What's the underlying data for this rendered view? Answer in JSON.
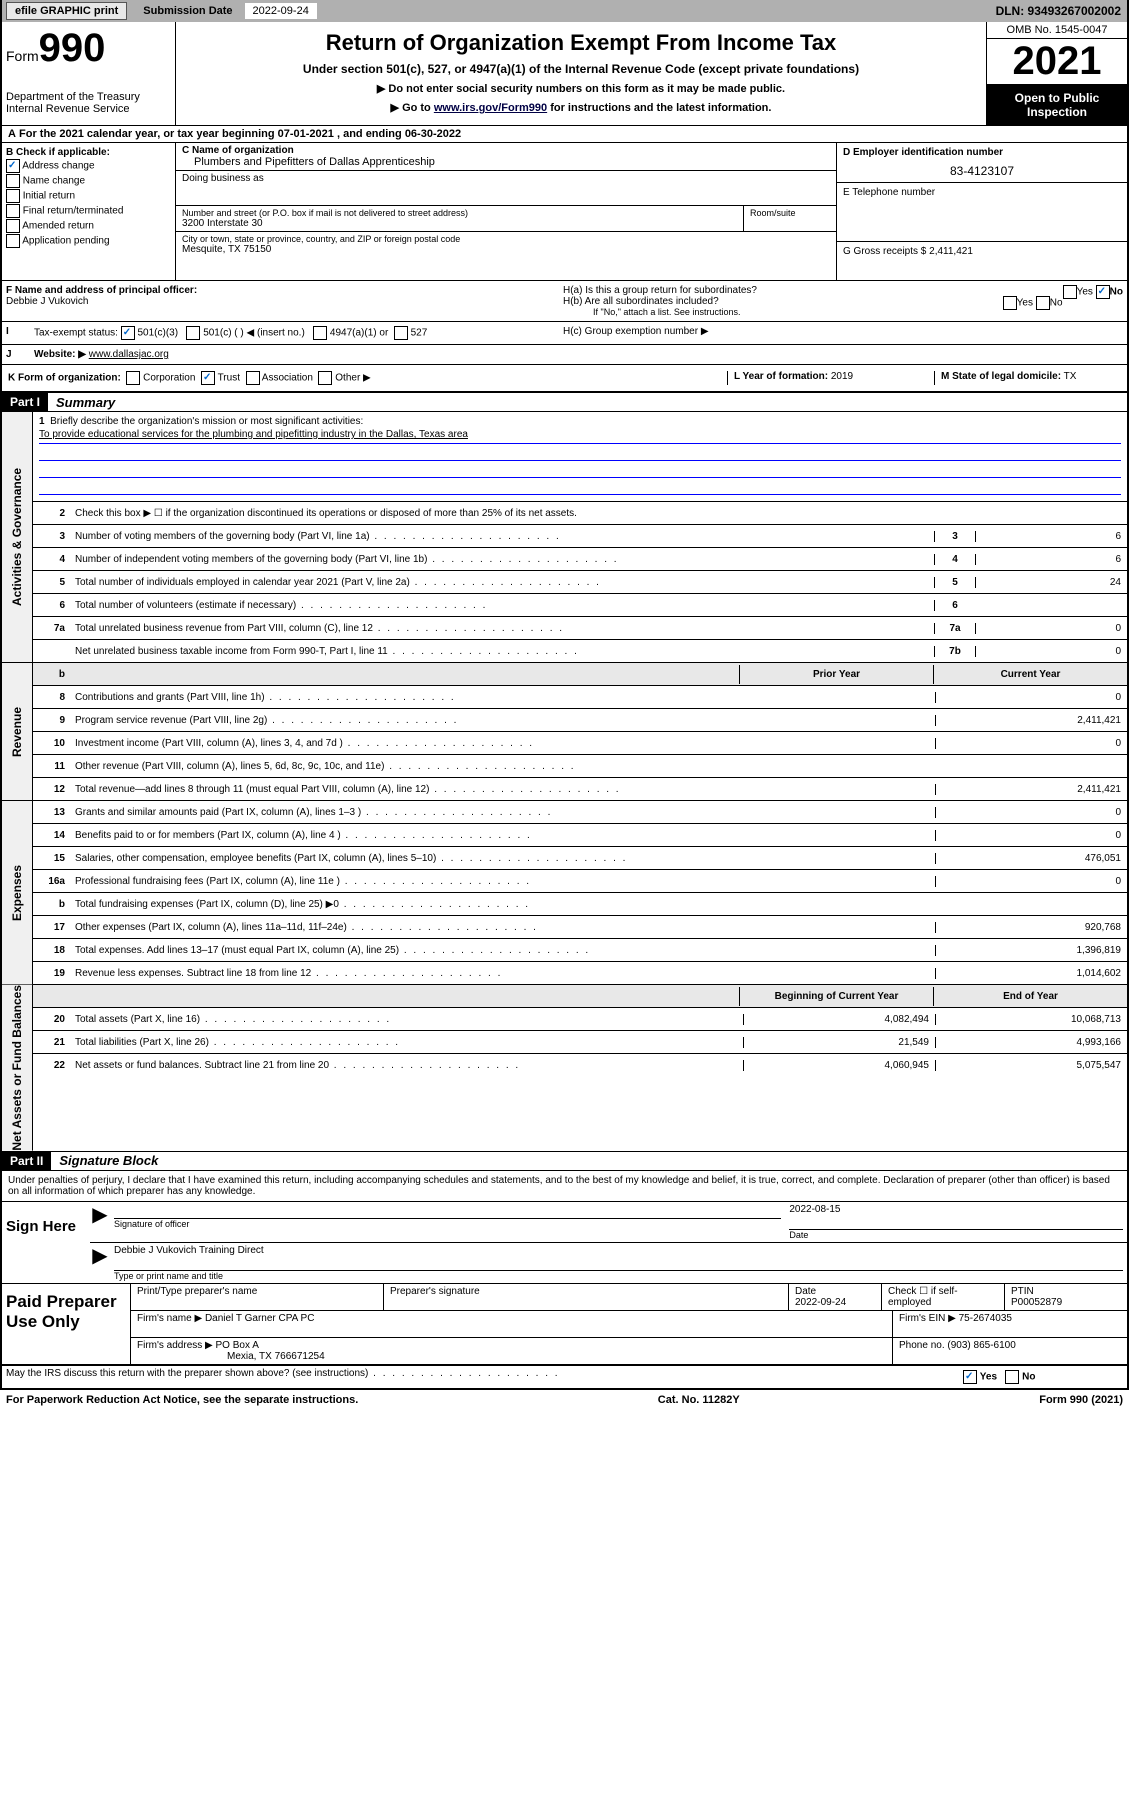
{
  "topbar": {
    "efile": "efile GRAPHIC print",
    "sub_date_label": "Submission Date",
    "sub_date": "2022-09-24",
    "dln": "DLN: 93493267002002"
  },
  "header": {
    "form_word": "Form",
    "form_num": "990",
    "title": "Return of Organization Exempt From Income Tax",
    "subtitle": "Under section 501(c), 527, or 4947(a)(1) of the Internal Revenue Code (except private foundations)",
    "inst1": "▶ Do not enter social security numbers on this form as it may be made public.",
    "inst2_pre": "▶ Go to ",
    "inst2_link": "www.irs.gov/Form990",
    "inst2_post": " for instructions and the latest information.",
    "dept": "Department of the Treasury",
    "irs": "Internal Revenue Service",
    "omb": "OMB No. 1545-0047",
    "year": "2021",
    "open": "Open to Public Inspection"
  },
  "period": {
    "a_label": "A",
    "text_pre": "For the 2021 calendar year, or tax year beginning ",
    "begin": "07-01-2021",
    "mid": " , and ending ",
    "end": "06-30-2022"
  },
  "colB": {
    "label": "B Check if applicable:",
    "opts": [
      "Address change",
      "Name change",
      "Initial return",
      "Final return/terminated",
      "Amended return",
      "Application pending"
    ],
    "checked_idx": 0
  },
  "colC": {
    "c_label": "C Name of organization",
    "org_name": "Plumbers and Pipefitters of Dallas Apprenticeship",
    "dba_label": "Doing business as",
    "dba": "",
    "addr_label": "Number and street (or P.O. box if mail is not delivered to street address)",
    "room_label": "Room/suite",
    "addr": "3200 Interstate 30",
    "city_label": "City or town, state or province, country, and ZIP or foreign postal code",
    "city": "Mesquite, TX  75150"
  },
  "colD": {
    "d_label": "D Employer identification number",
    "ein": "83-4123107",
    "e_label": "E Telephone number",
    "phone": "",
    "g_label": "G Gross receipts $",
    "gross": "2,411,421"
  },
  "rowF": {
    "f_label": "F Name and address of principal officer:",
    "officer": "Debbie J Vukovich"
  },
  "rowH": {
    "ha": "H(a)  Is this a group return for subordinates?",
    "ha_ans": "No",
    "hb": "H(b)  Are all subordinates included?",
    "hb_note": "If \"No,\" attach a list. See instructions.",
    "hc": "H(c)  Group exemption number ▶"
  },
  "rowI": {
    "label": "Tax-exempt status:",
    "opts": [
      "501(c)(3)",
      "501(c) (  ) ◀ (insert no.)",
      "4947(a)(1) or",
      "527"
    ],
    "checked_idx": 0
  },
  "rowJ": {
    "label": "Website: ▶",
    "url": "www.dallasjac.org"
  },
  "rowK": {
    "label": "K Form of organization:",
    "opts": [
      "Corporation",
      "Trust",
      "Association",
      "Other ▶"
    ],
    "checked_idx": 1,
    "l_label": "L Year of formation:",
    "l_val": "2019",
    "m_label": "M State of legal domicile:",
    "m_val": "TX"
  },
  "part1": {
    "header": "Part I",
    "title": "Summary"
  },
  "governance": {
    "side": "Activities & Governance",
    "l1_label": "Briefly describe the organization's mission or most significant activities:",
    "l1_text": "To provide educational services for the plumbing and pipefitting industry in the Dallas, Texas area",
    "l2": "Check this box ▶ ☐ if the organization discontinued its operations or disposed of more than 25% of its net assets.",
    "rows": [
      {
        "n": "3",
        "t": "Number of voting members of the governing body (Part VI, line 1a)",
        "c": "3",
        "v": "6"
      },
      {
        "n": "4",
        "t": "Number of independent voting members of the governing body (Part VI, line 1b)",
        "c": "4",
        "v": "6"
      },
      {
        "n": "5",
        "t": "Total number of individuals employed in calendar year 2021 (Part V, line 2a)",
        "c": "5",
        "v": "24"
      },
      {
        "n": "6",
        "t": "Total number of volunteers (estimate if necessary)",
        "c": "6",
        "v": ""
      },
      {
        "n": "7a",
        "t": "Total unrelated business revenue from Part VIII, column (C), line 12",
        "c": "7a",
        "v": "0"
      },
      {
        "n": "",
        "t": "Net unrelated business taxable income from Form 990-T, Part I, line 11",
        "c": "7b",
        "v": "0"
      }
    ]
  },
  "cols": {
    "prior": "Prior Year",
    "current": "Current Year",
    "boy": "Beginning of Current Year",
    "eoy": "End of Year"
  },
  "revenue": {
    "side": "Revenue",
    "rows": [
      {
        "n": "8",
        "t": "Contributions and grants (Part VIII, line 1h)",
        "p": "",
        "c": "0"
      },
      {
        "n": "9",
        "t": "Program service revenue (Part VIII, line 2g)",
        "p": "",
        "c": "2,411,421"
      },
      {
        "n": "10",
        "t": "Investment income (Part VIII, column (A), lines 3, 4, and 7d )",
        "p": "",
        "c": "0"
      },
      {
        "n": "11",
        "t": "Other revenue (Part VIII, column (A), lines 5, 6d, 8c, 9c, 10c, and 11e)",
        "p": "",
        "c": ""
      },
      {
        "n": "12",
        "t": "Total revenue—add lines 8 through 11 (must equal Part VIII, column (A), line 12)",
        "p": "",
        "c": "2,411,421"
      }
    ]
  },
  "expenses": {
    "side": "Expenses",
    "rows": [
      {
        "n": "13",
        "t": "Grants and similar amounts paid (Part IX, column (A), lines 1–3 )",
        "p": "",
        "c": "0"
      },
      {
        "n": "14",
        "t": "Benefits paid to or for members (Part IX, column (A), line 4 )",
        "p": "",
        "c": "0"
      },
      {
        "n": "15",
        "t": "Salaries, other compensation, employee benefits (Part IX, column (A), lines 5–10)",
        "p": "",
        "c": "476,051"
      },
      {
        "n": "16a",
        "t": "Professional fundraising fees (Part IX, column (A), line 11e )",
        "p": "",
        "c": "0"
      },
      {
        "n": "b",
        "t": "Total fundraising expenses (Part IX, column (D), line 25) ▶0",
        "p": "SHADE",
        "c": "SHADE"
      },
      {
        "n": "17",
        "t": "Other expenses (Part IX, column (A), lines 11a–11d, 11f–24e)",
        "p": "",
        "c": "920,768"
      },
      {
        "n": "18",
        "t": "Total expenses. Add lines 13–17 (must equal Part IX, column (A), line 25)",
        "p": "",
        "c": "1,396,819"
      },
      {
        "n": "19",
        "t": "Revenue less expenses. Subtract line 18 from line 12",
        "p": "",
        "c": "1,014,602"
      }
    ]
  },
  "netassets": {
    "side": "Net Assets or Fund Balances",
    "rows": [
      {
        "n": "20",
        "t": "Total assets (Part X, line 16)",
        "p": "4,082,494",
        "c": "10,068,713"
      },
      {
        "n": "21",
        "t": "Total liabilities (Part X, line 26)",
        "p": "21,549",
        "c": "4,993,166"
      },
      {
        "n": "22",
        "t": "Net assets or fund balances. Subtract line 21 from line 20",
        "p": "4,060,945",
        "c": "5,075,547"
      }
    ]
  },
  "part2": {
    "header": "Part II",
    "title": "Signature Block",
    "decl": "Under penalties of perjury, I declare that I have examined this return, including accompanying schedules and statements, and to the best of my knowledge and belief, it is true, correct, and complete. Declaration of preparer (other than officer) is based on all information of which preparer has any knowledge."
  },
  "sign": {
    "left": "Sign Here",
    "sig_label": "Signature of officer",
    "date": "2022-08-15",
    "date_label": "Date",
    "name": "Debbie J Vukovich  Training Direct",
    "name_label": "Type or print name and title"
  },
  "paid": {
    "left": "Paid Preparer Use Only",
    "h1": "Print/Type preparer's name",
    "h2": "Preparer's signature",
    "h3": "Date",
    "h3v": "2022-09-24",
    "h4": "Check ☐ if self-employed",
    "h5": "PTIN",
    "ptin": "P00052879",
    "firm_label": "Firm's name    ▶",
    "firm": "Daniel T Garner CPA PC",
    "ein_label": "Firm's EIN ▶",
    "ein": "75-2674035",
    "addr_label": "Firm's address ▶",
    "addr1": "PO Box A",
    "addr2": "Mexia, TX  766671254",
    "phone_label": "Phone no.",
    "phone": "(903) 865-6100"
  },
  "footer": {
    "discuss": "May the IRS discuss this return with the preparer shown above? (see instructions)",
    "yes": "Yes",
    "no": "No",
    "pra": "For Paperwork Reduction Act Notice, see the separate instructions.",
    "cat": "Cat. No. 11282Y",
    "form": "Form 990 (2021)"
  }
}
